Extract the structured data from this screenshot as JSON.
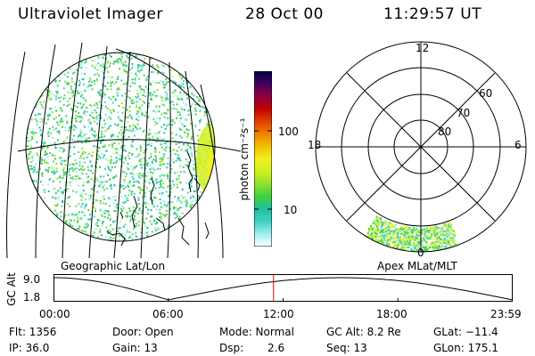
{
  "header": {
    "title": "Ultraviolet Imager",
    "date": "28 Oct 00",
    "time": "11:29:57 UT"
  },
  "geo_panel": {
    "label": "Geographic Lat/Lon"
  },
  "colorbar": {
    "label": "photon cm⁻²s⁻¹",
    "ticks": [
      "100",
      "10"
    ],
    "colors": [
      "#ffffff",
      "#a0f0f0",
      "#40d0c0",
      "#20c0a0",
      "#40d040",
      "#90e030",
      "#d0f020",
      "#f0f020",
      "#f0c000",
      "#f08000",
      "#e04000",
      "#c00000",
      "#900040",
      "#400060",
      "#000040"
    ]
  },
  "polar_panel": {
    "label": "Apex MLat/MLT",
    "mlt_labels": {
      "top": "12",
      "left": "18",
      "right": "6",
      "bottom": "0"
    },
    "lat_labels": [
      "60",
      "70",
      "80"
    ]
  },
  "gc_alt_plot": {
    "axis_label": "GC Alt",
    "y_ticks": [
      "9.0",
      "1.8"
    ],
    "x_ticks": [
      "00:00",
      "06:00",
      "12:00",
      "18:00",
      "23:59"
    ],
    "current_hour": 11.5,
    "marker_color": "#e00000"
  },
  "info": {
    "flt": "Flt: 1356",
    "ip": "IP: 36.0",
    "door": "Door: Open",
    "gain": "Gain: 13",
    "mode": "Mode: Normal",
    "dsp_label": "Dsp:",
    "dsp_value": "2.6",
    "gc_alt": "GC Alt: 8.2 Re",
    "seq": "Seq: 13",
    "glat": "GLat: −11.4",
    "glon": "GLon: 175.1"
  }
}
